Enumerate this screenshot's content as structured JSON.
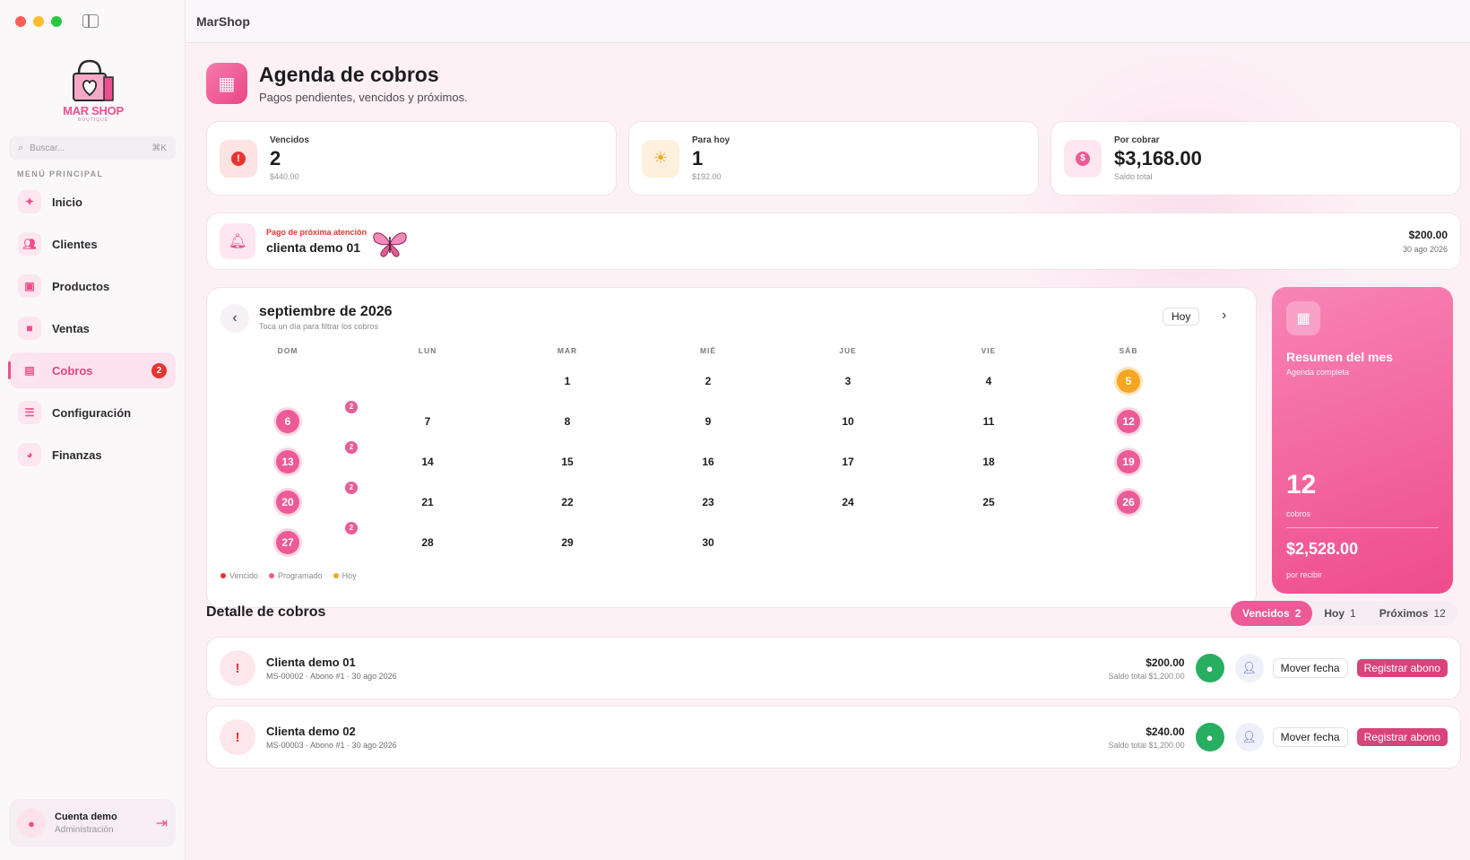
{
  "app": {
    "title": "MarShop"
  },
  "sidebar": {
    "logo_text": "MAR SHOP",
    "logo_sub": "BOUTIQUE",
    "search_placeholder": "Buscar...",
    "search_shortcut": "⌘K",
    "section_label": "MENÚ PRINCIPAL",
    "items": [
      {
        "label": "Inicio",
        "icon": "sparkle-icon"
      },
      {
        "label": "Clientes",
        "icon": "people-icon"
      },
      {
        "label": "Productos",
        "icon": "box-icon"
      },
      {
        "label": "Ventas",
        "icon": "bag-icon"
      },
      {
        "label": "Cobros",
        "icon": "card-icon",
        "badge": "2",
        "active": true
      },
      {
        "label": "Configuración",
        "icon": "sliders-icon"
      },
      {
        "label": "Finanzas",
        "icon": "pie-icon"
      }
    ],
    "account": {
      "name": "Cuenta demo",
      "role": "Administración"
    }
  },
  "header": {
    "title": "Agenda de cobros",
    "subtitle": "Pagos pendientes, vencidos y próximos."
  },
  "stats": [
    {
      "label": "Vencidos",
      "value": "2",
      "sub": "$440.00",
      "icon": "alert-icon",
      "color": "#e8342f"
    },
    {
      "label": "Para hoy",
      "value": "1",
      "sub": "$192.00",
      "icon": "sun-icon",
      "color": "#f5a623"
    },
    {
      "label": "Por cobrar",
      "value": "$3,168.00",
      "sub": "Saldo total",
      "icon": "dollar-icon",
      "color": "#ec5b97"
    }
  ],
  "next_payment": {
    "label": "Pago de próxima atención",
    "client": "clienta demo 01",
    "amount": "$200.00",
    "date": "30 ago 2026"
  },
  "calendar": {
    "month": "septiembre de 2026",
    "hint": "Toca un día para filtrar los cobros",
    "today_label": "Hoy",
    "weekdays": [
      "DOM",
      "LUN",
      "MAR",
      "MIÉ",
      "JUE",
      "VIE",
      "SÁB"
    ],
    "legend": [
      "Vencido",
      "Programado",
      "Hoy"
    ],
    "colors": {
      "vencido": "#e8342f",
      "programado": "#ec5b97",
      "hoy": "#f5a623"
    }
  },
  "summary": {
    "title": "Resumen del mes",
    "subtitle": "Agenda completa",
    "count": "12",
    "count_label": "cobros",
    "amount": "$2,528.00",
    "amount_label": "por recibir"
  },
  "detail": {
    "title": "Detalle de cobros",
    "tabs": [
      {
        "label": "Vencidos",
        "count": "2",
        "active": true
      },
      {
        "label": "Hoy",
        "count": "1"
      },
      {
        "label": "Próximos",
        "count": "12"
      }
    ],
    "rows": [
      {
        "name": "Clienta demo 01",
        "sub": "MS-00002 · Abono #1 · 30 ago 2026",
        "amount": "$200.00",
        "total": "Saldo total $1,200.00"
      },
      {
        "name": "Clienta demo 02",
        "sub": "MS-00003 · Abono #1 · 30 ago 2026",
        "amount": "$240.00",
        "total": "Saldo total $1,200.00"
      }
    ],
    "move_label": "Mover fecha",
    "register_label": "Registrar abono"
  }
}
